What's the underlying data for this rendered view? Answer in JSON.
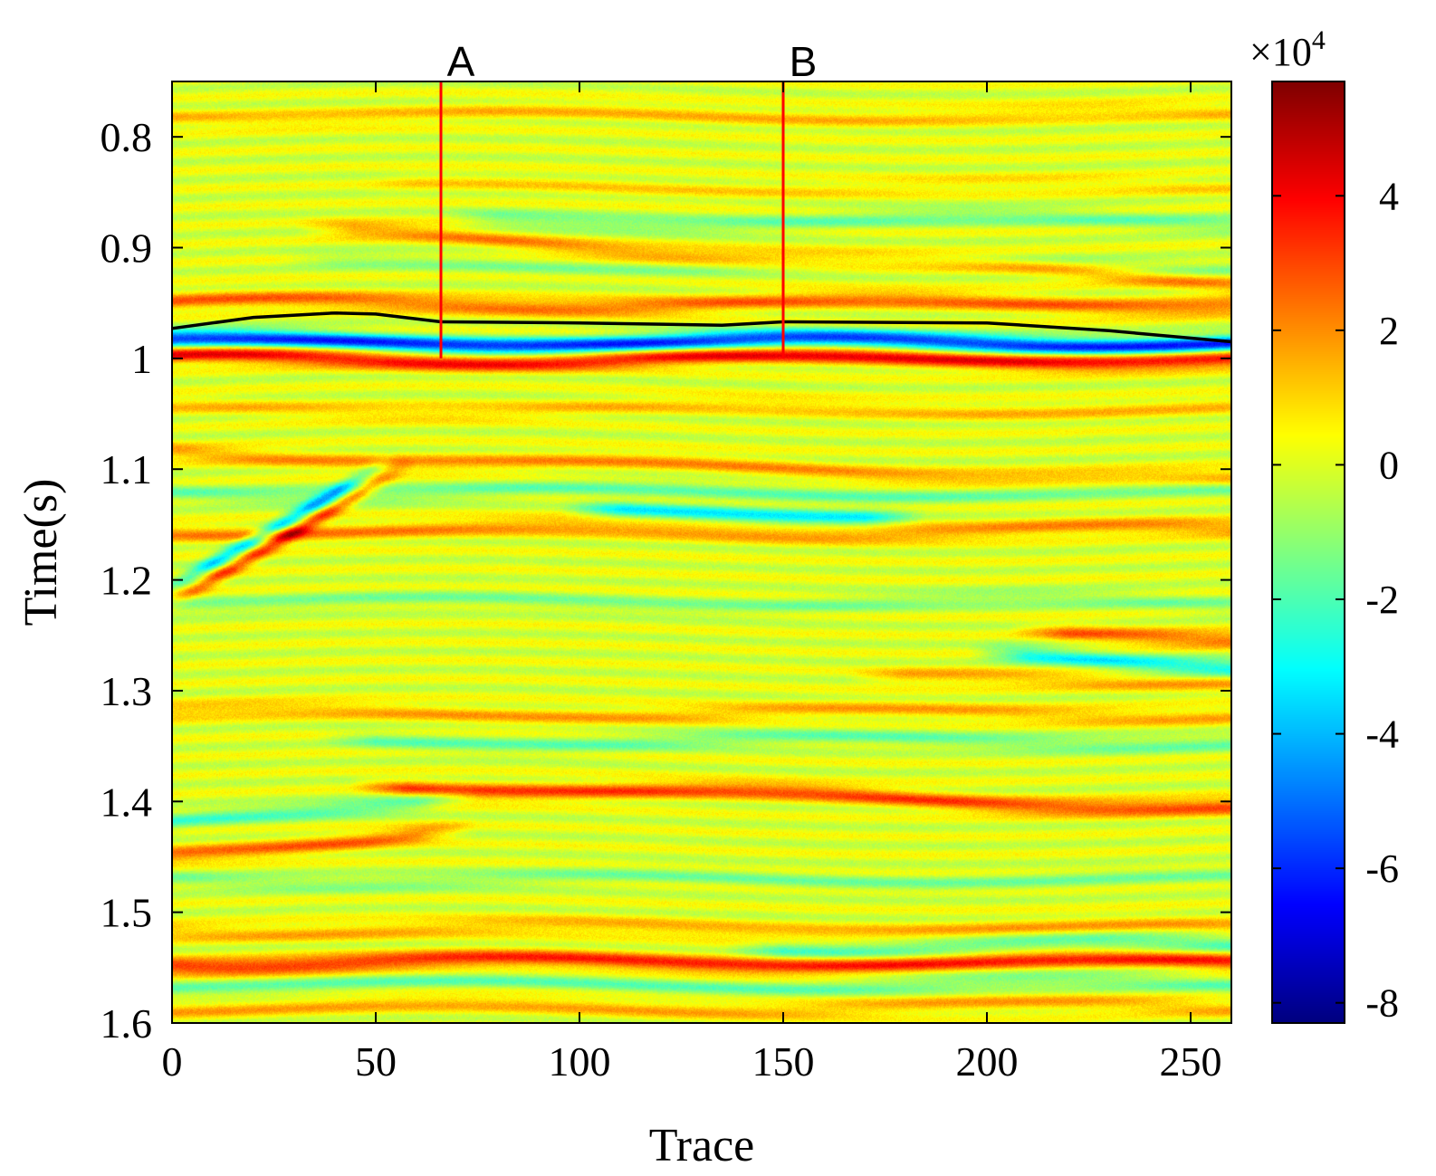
{
  "chart_data": {
    "type": "heatmap",
    "title": "",
    "xlabel": "Trace",
    "ylabel": "Time(s)",
    "xlim": [
      0,
      260
    ],
    "ylim": [
      0.75,
      1.6
    ],
    "y_reversed": true,
    "xticks": [
      0,
      50,
      100,
      150,
      200,
      250
    ],
    "xtick_labels": [
      "0",
      "50",
      "100",
      "150",
      "200",
      "250"
    ],
    "yticks": [
      0.8,
      0.9,
      1.0,
      1.1,
      1.2,
      1.3,
      1.4,
      1.5,
      1.6
    ],
    "ytick_labels": [
      "0.8",
      "0.9",
      "1",
      "1.1",
      "1.2",
      "1.3",
      "1.4",
      "1.5",
      "1.6"
    ],
    "grid": false,
    "colormap": "jet",
    "colorbar": {
      "range": [
        -8.3,
        5.7
      ],
      "ticks": [
        4,
        2,
        0,
        -2,
        -4,
        -6,
        -8
      ],
      "tick_labels": [
        "4",
        "2",
        "0",
        "-2",
        "-4",
        "-6",
        "-8"
      ],
      "multiplier_label": "×10",
      "multiplier_exponent": "4"
    },
    "markers": [
      {
        "label": "A",
        "trace": 66,
        "time_top": 0.75,
        "time_bottom": 1.0,
        "color": "#ff0000"
      },
      {
        "label": "B",
        "trace": 150,
        "time_top": 0.75,
        "time_bottom": 1.0,
        "color": "#ff0000"
      }
    ],
    "horizon": {
      "color": "#000000",
      "trace": [
        0,
        20,
        40,
        50,
        66,
        100,
        135,
        150,
        200,
        230,
        260
      ],
      "time": [
        0.973,
        0.963,
        0.959,
        0.96,
        0.967,
        0.968,
        0.97,
        0.967,
        0.968,
        0.975,
        0.985
      ]
    },
    "events": [
      {
        "t": 0.78,
        "amp": 1.2,
        "slope": 0.0,
        "x0": 0,
        "x1": 260
      },
      {
        "t": 0.845,
        "amp": 0.8,
        "slope": 0.0,
        "x0": 60,
        "x1": 260
      },
      {
        "t": 0.875,
        "amp": -1.5,
        "slope": 0.0,
        "x0": 80,
        "x1": 260
      },
      {
        "t": 0.887,
        "amp": 2.0,
        "slope": 0.02,
        "x0": 45,
        "x1": 260
      },
      {
        "t": 0.915,
        "amp": -1.0,
        "slope": 0.0,
        "x0": 40,
        "x1": 260
      },
      {
        "t": 0.95,
        "amp": 2.5,
        "slope": 0.0,
        "x0": 0,
        "x1": 260
      },
      {
        "t": 0.985,
        "amp": -6.0,
        "slope": 0.0,
        "x0": 0,
        "x1": 260
      },
      {
        "t": 1.0,
        "amp": 4.0,
        "slope": 0.0,
        "x0": 0,
        "x1": 260
      },
      {
        "t": 1.045,
        "amp": 1.2,
        "slope": 0.0,
        "x0": 0,
        "x1": 260
      },
      {
        "t": 1.085,
        "amp": 1.8,
        "slope": 0.01,
        "x0": 0,
        "x1": 260
      },
      {
        "t": 1.12,
        "amp": -1.5,
        "slope": 0.0,
        "x0": 0,
        "x1": 260
      },
      {
        "t": 1.14,
        "amp": -3.0,
        "slope": 0.0,
        "x0": 110,
        "x1": 170
      },
      {
        "t": 1.155,
        "amp": 2.0,
        "slope": 0.0,
        "x0": 0,
        "x1": 260
      },
      {
        "t": 1.18,
        "amp": -3.5,
        "slope": -0.2,
        "x0": 10,
        "x1": 40
      },
      {
        "t": 1.195,
        "amp": 3.0,
        "slope": -0.2,
        "x0": 10,
        "x1": 45
      },
      {
        "t": 1.22,
        "amp": -1.2,
        "slope": 0.0,
        "x0": 0,
        "x1": 260
      },
      {
        "t": 1.25,
        "amp": 2.5,
        "slope": 0.0,
        "x0": 220,
        "x1": 260
      },
      {
        "t": 1.27,
        "amp": -3.0,
        "slope": 0.01,
        "x0": 210,
        "x1": 260
      },
      {
        "t": 1.29,
        "amp": 1.5,
        "slope": 0.0,
        "x0": 180,
        "x1": 260
      },
      {
        "t": 1.32,
        "amp": 1.5,
        "slope": 0.0,
        "x0": 0,
        "x1": 260
      },
      {
        "t": 1.345,
        "amp": -1.5,
        "slope": 0.0,
        "x0": 50,
        "x1": 260
      },
      {
        "t": 1.385,
        "amp": 3.0,
        "slope": 0.01,
        "x0": 58,
        "x1": 260
      },
      {
        "t": 1.42,
        "amp": -2.0,
        "slope": -0.04,
        "x0": 0,
        "x1": 60
      },
      {
        "t": 1.45,
        "amp": 2.5,
        "slope": -0.04,
        "x0": 0,
        "x1": 60
      },
      {
        "t": 1.47,
        "amp": -1.2,
        "slope": 0.0,
        "x0": 0,
        "x1": 260
      },
      {
        "t": 1.515,
        "amp": 1.5,
        "slope": 0.0,
        "x0": 0,
        "x1": 260
      },
      {
        "t": 1.53,
        "amp": -2.0,
        "slope": 0.0,
        "x0": 150,
        "x1": 260
      },
      {
        "t": 1.545,
        "amp": 3.5,
        "slope": 0.0,
        "x0": 0,
        "x1": 260
      },
      {
        "t": 1.565,
        "amp": -1.5,
        "slope": 0.0,
        "x0": 0,
        "x1": 260
      },
      {
        "t": 1.585,
        "amp": 1.5,
        "slope": 0.0,
        "x0": 0,
        "x1": 260
      }
    ]
  }
}
